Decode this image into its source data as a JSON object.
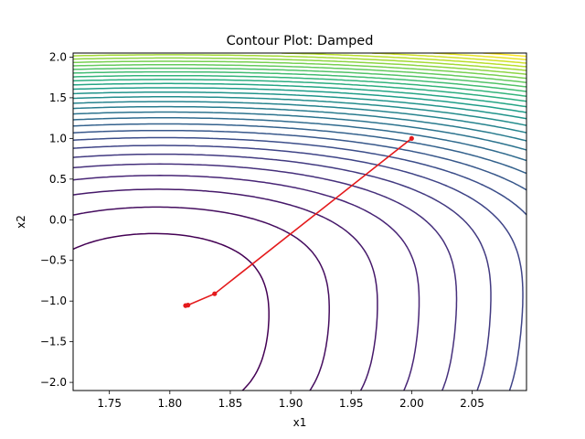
{
  "chart_data": {
    "type": "contour",
    "title": "Contour Plot: Damped",
    "xlabel": "x1",
    "ylabel": "x2",
    "xlim": [
      1.72,
      2.095
    ],
    "ylim": [
      -2.1,
      2.05
    ],
    "x_ticks": [
      1.75,
      1.8,
      1.85,
      1.9,
      1.95,
      2.0,
      2.05
    ],
    "x_tick_labels": [
      "1.75",
      "1.80",
      "1.85",
      "1.90",
      "1.95",
      "2.00",
      "2.05"
    ],
    "y_ticks": [
      -2.0,
      -1.5,
      -1.0,
      -0.5,
      0.0,
      0.5,
      1.0,
      1.5,
      2.0
    ],
    "y_tick_labels": [
      "−2.0",
      "−1.5",
      "−1.0",
      "−0.5",
      "0.0",
      "0.5",
      "1.0",
      "1.5",
      "2.0"
    ],
    "grid": false,
    "legend": "none",
    "colormap": "viridis",
    "contour_levels": 30,
    "path": {
      "color": "#e41a1c",
      "points": [
        [
          2.0,
          1.0
        ],
        [
          1.837,
          -0.91
        ],
        [
          1.815,
          -1.05
        ],
        [
          1.813,
          -1.055
        ]
      ]
    }
  }
}
